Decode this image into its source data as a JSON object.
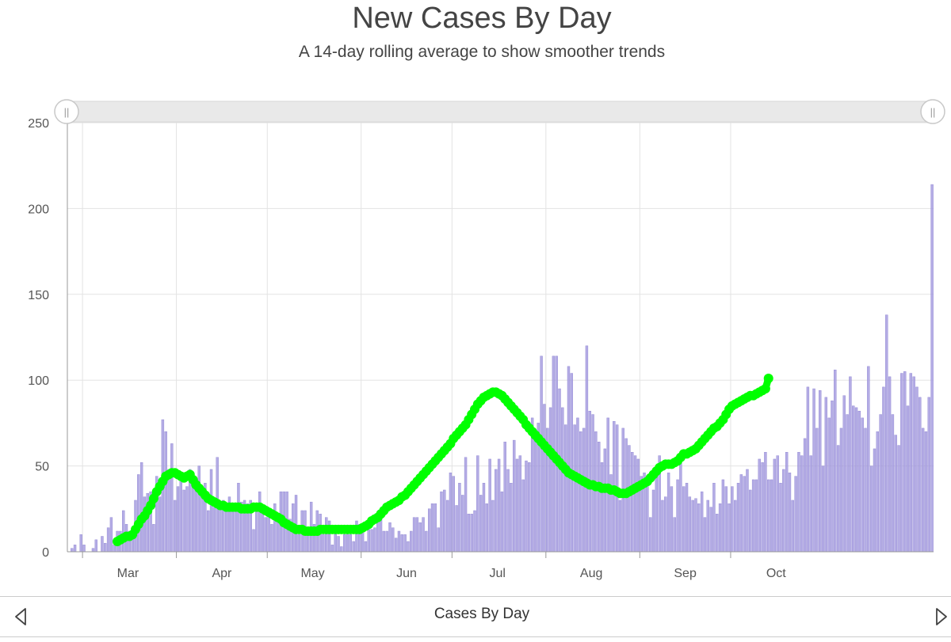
{
  "chart_data": {
    "type": "bar",
    "title": "New Cases By Day",
    "subtitle": "A 14-day rolling average to show smoother trends",
    "xlabel": "",
    "ylabel": "",
    "ylim": [
      0,
      250
    ],
    "yticks": [
      0,
      50,
      100,
      150,
      200,
      250
    ],
    "x_start": "2020-02-25",
    "month_ticks": [
      {
        "label": "Mar",
        "date": "2020-03-01"
      },
      {
        "label": "Apr",
        "date": "2020-04-01"
      },
      {
        "label": "May",
        "date": "2020-05-01"
      },
      {
        "label": "Jun",
        "date": "2020-06-01"
      },
      {
        "label": "Jul",
        "date": "2020-07-01"
      },
      {
        "label": "Aug",
        "date": "2020-08-01"
      },
      {
        "label": "Sep",
        "date": "2020-09-01"
      },
      {
        "label": "Oct",
        "date": "2020-10-01"
      }
    ],
    "grid": true,
    "series": [
      {
        "type": "bar",
        "color": "#a79ee0",
        "values": [
          0,
          2,
          4,
          0,
          10,
          4,
          0,
          0,
          2,
          7,
          0,
          9,
          5,
          14,
          20,
          4,
          12,
          12,
          24,
          16,
          12,
          12,
          30,
          45,
          52,
          32,
          34,
          35,
          16,
          44,
          32,
          77,
          70,
          48,
          63,
          30,
          38,
          46,
          36,
          38,
          48,
          38,
          40,
          50,
          32,
          40,
          24,
          48,
          26,
          55,
          25,
          30,
          26,
          32,
          24,
          26,
          40,
          29,
          30,
          28,
          30,
          13,
          26,
          35,
          26,
          20,
          21,
          16,
          28,
          22,
          35,
          35,
          35,
          19,
          28,
          33,
          10,
          24,
          24,
          12,
          29,
          16,
          24,
          22,
          10,
          20,
          18,
          4,
          15,
          9,
          3,
          10,
          14,
          10,
          6,
          18,
          16,
          12,
          6,
          13,
          13,
          14,
          22,
          20,
          12,
          12,
          17,
          14,
          8,
          12,
          10,
          10,
          6,
          12,
          20,
          20,
          17,
          20,
          12,
          25,
          28,
          28,
          14,
          35,
          36,
          30,
          46,
          44,
          27,
          40,
          33,
          55,
          22,
          22,
          24,
          56,
          33,
          40,
          28,
          54,
          30,
          48,
          54,
          35,
          64,
          48,
          40,
          65,
          54,
          56,
          42,
          53,
          52,
          78,
          66,
          75,
          114,
          86,
          72,
          84,
          114,
          114,
          95,
          84,
          74,
          108,
          104,
          74,
          78,
          70,
          72,
          120,
          82,
          80,
          70,
          64,
          52,
          60,
          78,
          45,
          76,
          74,
          30,
          72,
          66,
          62,
          58,
          56,
          54,
          44,
          46,
          40,
          20,
          36,
          44,
          56,
          30,
          32,
          46,
          38,
          20,
          42,
          54,
          38,
          40,
          32,
          30,
          31,
          28,
          35,
          20,
          30,
          26,
          40,
          22,
          28,
          42,
          38,
          28,
          38,
          30,
          40,
          45,
          44,
          48,
          36,
          42,
          42,
          54,
          52,
          58,
          42,
          42,
          54,
          56,
          40,
          48,
          58,
          46,
          30,
          44,
          58,
          56,
          66,
          96,
          56,
          95,
          72,
          94,
          50,
          90,
          78,
          88,
          106,
          62,
          72,
          91,
          80,
          102,
          85,
          84,
          82,
          78,
          72,
          108,
          50,
          60,
          70,
          80,
          96,
          138,
          102,
          80,
          68,
          62,
          104,
          105,
          85,
          104,
          102,
          96,
          90,
          72,
          70,
          90,
          214
        ]
      },
      {
        "type": "line",
        "color": "#00ff00",
        "start_index": 16,
        "values": [
          6,
          7,
          8,
          9,
          9,
          10,
          13,
          16,
          19,
          21,
          24,
          27,
          31,
          35,
          38,
          41,
          44,
          45,
          46,
          46,
          45,
          44,
          43,
          44,
          45,
          42,
          39,
          37,
          35,
          33,
          31,
          30,
          29,
          28,
          27,
          27,
          26,
          26,
          26,
          26,
          26,
          25,
          25,
          25,
          25,
          26,
          26,
          26,
          25,
          24,
          23,
          22,
          21,
          20,
          19,
          17,
          16,
          15,
          14,
          13,
          13,
          13,
          12,
          12,
          12,
          12,
          12,
          13,
          13,
          13,
          13,
          13,
          13,
          13,
          13,
          13,
          13,
          13,
          13,
          13,
          13,
          14,
          15,
          16,
          18,
          19,
          20,
          22,
          24,
          26,
          27,
          28,
          29,
          30,
          32,
          33,
          35,
          37,
          39,
          41,
          43,
          45,
          47,
          49,
          51,
          53,
          55,
          57,
          59,
          61,
          63,
          66,
          68,
          70,
          72,
          74,
          77,
          80,
          83,
          86,
          88,
          90,
          91,
          92,
          93,
          93,
          92,
          91,
          89,
          87,
          85,
          83,
          81,
          79,
          77,
          74,
          72,
          70,
          68,
          66,
          64,
          62,
          60,
          58,
          56,
          54,
          52,
          50,
          48,
          46,
          45,
          44,
          43,
          42,
          41,
          40,
          39,
          39,
          38,
          38,
          37,
          37,
          37,
          36,
          36,
          35,
          34,
          34,
          34,
          35,
          36,
          37,
          38,
          39,
          40,
          41,
          43,
          45,
          47,
          49,
          50,
          51,
          51,
          51,
          52,
          53,
          55,
          57,
          57,
          58,
          59,
          60,
          62,
          64,
          66,
          68,
          70,
          72,
          73,
          75,
          77,
          80,
          83,
          85,
          86,
          87,
          88,
          89,
          90,
          91,
          91,
          92,
          93,
          94,
          95,
          101
        ]
      }
    ]
  },
  "range_slider": {
    "left_handle": "||",
    "right_handle": "||"
  },
  "footer": {
    "label": "Cases By Day",
    "prev_icon": "triangle-left-icon",
    "next_icon": "triangle-right-icon"
  }
}
